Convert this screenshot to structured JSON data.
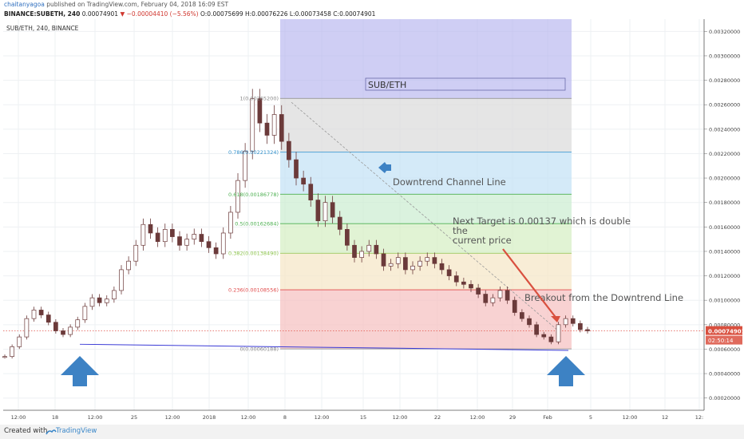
{
  "header": {
    "author": "chaitanyagoa",
    "published_text": " published on TradingView.com, February 04, 2018 16:09 EST",
    "symbol_line": "BINANCE:SUBETH, 240",
    "last_price": "0.00074901",
    "change": "−0.00004410 (−5.56%)",
    "ohlc": "O:0.00075699 H:0.00076226 L:0.00073458 C:0.00074901"
  },
  "chart_data": {
    "type": "candlestick",
    "title": "SUB/ETH",
    "symbol_label": "SUB/ETH, 240, BINANCE",
    "ylim": [
      0.0001,
      0.0033
    ],
    "y_ticks": [
      "0.00020000",
      "0.00040000",
      "0.00060000",
      "0.00080000",
      "0.00100000",
      "0.00120000",
      "0.00140000",
      "0.00160000",
      "0.00180000",
      "0.00200000",
      "0.00220000",
      "0.00240000",
      "0.00260000",
      "0.00280000",
      "0.00300000",
      "0.00320000"
    ],
    "x_ticks": [
      "12:00",
      "18",
      "12:00",
      "25",
      "12:00",
      "2018",
      "12:00",
      "8",
      "12:00",
      "15",
      "12:00",
      "22",
      "12:00",
      "29",
      "Feb",
      "5",
      "12:00",
      "12",
      "12:"
    ],
    "current_price_label": "0.00074901",
    "countdown_label": "02:50:14",
    "price_series": [
      0.00054,
      0.00062,
      0.0007,
      0.00085,
      0.00092,
      0.00088,
      0.00082,
      0.00075,
      0.00072,
      0.00078,
      0.00084,
      0.00095,
      0.00102,
      0.00098,
      0.00101,
      0.00108,
      0.00125,
      0.00132,
      0.00145,
      0.00162,
      0.00155,
      0.00148,
      0.00158,
      0.00152,
      0.00145,
      0.0015,
      0.00154,
      0.00148,
      0.00143,
      0.00138,
      0.00155,
      0.00172,
      0.00198,
      0.00222,
      0.00265,
      0.00245,
      0.00235,
      0.00252,
      0.0023,
      0.00215,
      0.002,
      0.00195,
      0.00182,
      0.00165,
      0.0018,
      0.00168,
      0.00158,
      0.00145,
      0.00135,
      0.0014,
      0.00145,
      0.00138,
      0.00128,
      0.0013,
      0.00135,
      0.00125,
      0.00128,
      0.00132,
      0.00135,
      0.0013,
      0.00125,
      0.0012,
      0.00115,
      0.00113,
      0.0011,
      0.00105,
      0.00098,
      0.00102,
      0.00108,
      0.001,
      0.0009,
      0.00085,
      0.0008,
      0.00072,
      0.0007,
      0.00066,
      0.0008,
      0.00085,
      0.00081,
      0.00076,
      0.00075
    ],
    "fibonacci": [
      {
        "label": "1(0.00265200)",
        "value": 0.002652,
        "color": "#888888"
      },
      {
        "label": "0.786(0.00221324)",
        "value": 0.00221324,
        "color": "#2f8fca"
      },
      {
        "label": "0.618(0.00186778)",
        "value": 0.00186778,
        "color": "#4caf50"
      },
      {
        "label": "0.5(0.00162684)",
        "value": 0.00162684,
        "color": "#4caf50"
      },
      {
        "label": "0.382(0.00138490)",
        "value": 0.0013849,
        "color": "#8bc34a"
      },
      {
        "label": "0.236(0.00108556)",
        "value": 0.00108556,
        "color": "#e04a4a"
      },
      {
        "label": "0(0.00060188)",
        "value": 0.00060188,
        "color": "#888888"
      }
    ],
    "annotations": [
      {
        "text": "Downtrend Channel Line"
      },
      {
        "text": "Next Target is 0.00137 which is double the current price"
      },
      {
        "text": "Breakout from the Downtrend Line"
      }
    ]
  },
  "colors": {
    "up": "#26a69a",
    "down": "#ef5350",
    "candle_body": "#6b3a3a",
    "arrow": "#3d82c4",
    "support_line": "#3b3bd6"
  },
  "footer": {
    "created_with": "Created with",
    "brand": "TradingView"
  }
}
